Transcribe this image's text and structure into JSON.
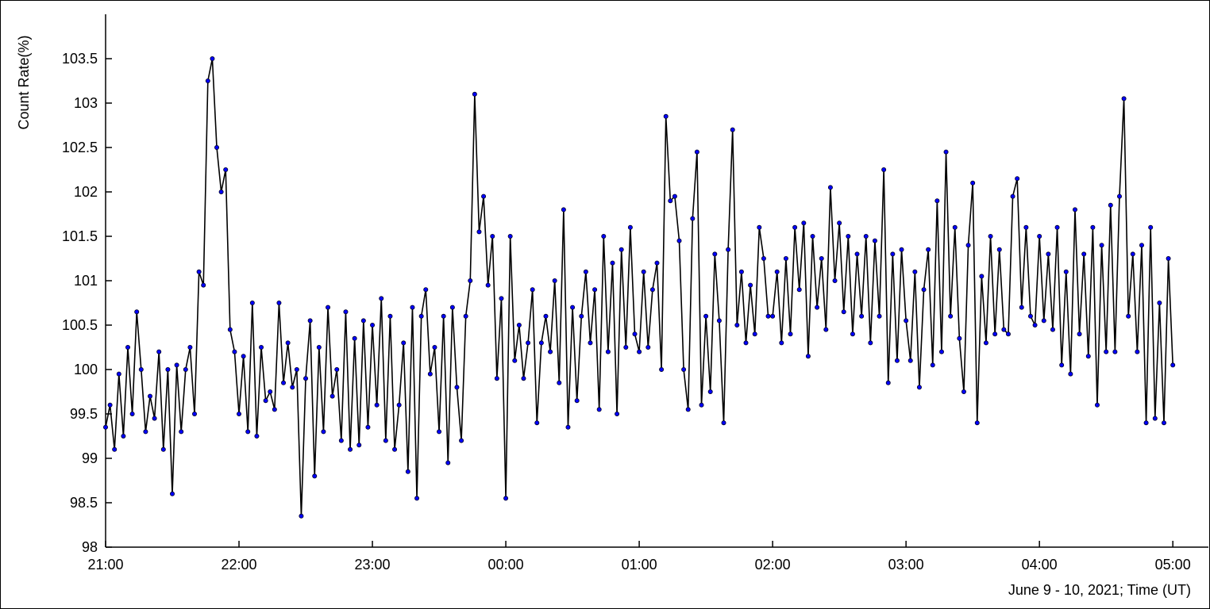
{
  "chart_data": {
    "type": "line",
    "y_label": "Count Rate(%)",
    "x_label": "June 9 - 10, 2021; Time (UT)",
    "xlim": [
      "21:00",
      "05:16"
    ],
    "xticks": [
      "21:00",
      "22:00",
      "23:00",
      "00:00",
      "01:00",
      "02:00",
      "03:00",
      "04:00",
      "05:00"
    ],
    "ylim": [
      98,
      104
    ],
    "yticks": [
      98,
      98.5,
      99,
      99.5,
      100,
      100.5,
      101,
      101.5,
      102,
      102.5,
      103,
      103.5
    ],
    "x": [
      "21:00",
      "21:02",
      "21:04",
      "21:06",
      "21:08",
      "21:10",
      "21:12",
      "21:14",
      "21:16",
      "21:18",
      "21:20",
      "21:22",
      "21:24",
      "21:26",
      "21:28",
      "21:30",
      "21:32",
      "21:34",
      "21:36",
      "21:38",
      "21:40",
      "21:42",
      "21:44",
      "21:46",
      "21:48",
      "21:50",
      "21:52",
      "21:54",
      "21:56",
      "21:58",
      "22:00",
      "22:02",
      "22:04",
      "22:06",
      "22:08",
      "22:10",
      "22:12",
      "22:14",
      "22:16",
      "22:18",
      "22:20",
      "22:22",
      "22:24",
      "22:26",
      "22:28",
      "22:30",
      "22:32",
      "22:34",
      "22:36",
      "22:38",
      "22:40",
      "22:42",
      "22:44",
      "22:46",
      "22:48",
      "22:50",
      "22:52",
      "22:54",
      "22:56",
      "22:58",
      "23:00",
      "23:02",
      "23:04",
      "23:06",
      "23:08",
      "23:10",
      "23:12",
      "23:14",
      "23:16",
      "23:18",
      "23:20",
      "23:22",
      "23:24",
      "23:26",
      "23:28",
      "23:30",
      "23:32",
      "23:34",
      "23:36",
      "23:38",
      "23:40",
      "23:42",
      "23:44",
      "23:46",
      "23:48",
      "23:50",
      "23:52",
      "23:54",
      "23:56",
      "23:58",
      "00:00",
      "00:02",
      "00:04",
      "00:06",
      "00:08",
      "00:10",
      "00:12",
      "00:14",
      "00:16",
      "00:18",
      "00:20",
      "00:22",
      "00:24",
      "00:26",
      "00:28",
      "00:30",
      "00:32",
      "00:34",
      "00:36",
      "00:38",
      "00:40",
      "00:42",
      "00:44",
      "00:46",
      "00:48",
      "00:50",
      "00:52",
      "00:54",
      "00:56",
      "00:58",
      "01:00",
      "01:02",
      "01:04",
      "01:06",
      "01:08",
      "01:10",
      "01:12",
      "01:14",
      "01:16",
      "01:18",
      "01:20",
      "01:22",
      "01:24",
      "01:26",
      "01:28",
      "01:30",
      "01:32",
      "01:34",
      "01:36",
      "01:38",
      "01:40",
      "01:42",
      "01:44",
      "01:46",
      "01:48",
      "01:50",
      "01:52",
      "01:54",
      "01:56",
      "01:58",
      "02:00",
      "02:02",
      "02:04",
      "02:06",
      "02:08",
      "02:10",
      "02:12",
      "02:14",
      "02:16",
      "02:18",
      "02:20",
      "02:22",
      "02:24",
      "02:26",
      "02:28",
      "02:30",
      "02:32",
      "02:34",
      "02:36",
      "02:38",
      "02:40",
      "02:42",
      "02:44",
      "02:46",
      "02:48",
      "02:50",
      "02:52",
      "02:54",
      "02:56",
      "02:58",
      "03:00",
      "03:02",
      "03:04",
      "03:06",
      "03:08",
      "03:10",
      "03:12",
      "03:14",
      "03:16",
      "03:18",
      "03:20",
      "03:22",
      "03:24",
      "03:26",
      "03:28",
      "03:30",
      "03:32",
      "03:34",
      "03:36",
      "03:38",
      "03:40",
      "03:42",
      "03:44",
      "03:46",
      "03:48",
      "03:50",
      "03:52",
      "03:54",
      "03:56",
      "03:58",
      "04:00",
      "04:02",
      "04:04",
      "04:06",
      "04:08",
      "04:10",
      "04:12",
      "04:14",
      "04:16",
      "04:18",
      "04:20",
      "04:22",
      "04:24",
      "04:26",
      "04:28",
      "04:30",
      "04:32",
      "04:34",
      "04:36",
      "04:38",
      "04:40",
      "04:42",
      "04:44",
      "04:46",
      "04:48",
      "04:50",
      "04:52",
      "04:54",
      "04:56",
      "04:58",
      "05:00"
    ],
    "series": [
      {
        "color": "#000000",
        "marker_color": "#0000ff",
        "values": [
          99.35,
          99.6,
          99.1,
          99.95,
          99.25,
          100.25,
          99.5,
          100.65,
          100.0,
          99.3,
          99.7,
          99.45,
          100.2,
          99.1,
          100.0,
          98.6,
          100.05,
          99.3,
          100.0,
          100.25,
          99.5,
          101.1,
          100.95,
          103.25,
          103.5,
          102.5,
          102.0,
          102.25,
          100.45,
          100.2,
          99.5,
          100.15,
          99.3,
          100.75,
          99.25,
          100.25,
          99.65,
          99.75,
          99.55,
          100.75,
          99.85,
          100.3,
          99.8,
          100.0,
          98.35,
          99.9,
          100.55,
          98.8,
          100.25,
          99.3,
          100.7,
          99.7,
          100.0,
          99.2,
          100.65,
          99.1,
          100.35,
          99.15,
          100.55,
          99.35,
          100.5,
          99.6,
          100.8,
          99.2,
          100.6,
          99.1,
          99.6,
          100.3,
          98.85,
          100.7,
          98.55,
          100.6,
          100.9,
          99.95,
          100.25,
          99.3,
          100.6,
          98.95,
          100.7,
          99.8,
          99.2,
          100.6,
          101.0,
          103.1,
          101.55,
          101.95,
          100.95,
          101.5,
          99.9,
          100.8,
          98.55,
          101.5,
          100.1,
          100.5,
          99.9,
          100.3,
          100.9,
          99.4,
          100.3,
          100.6,
          100.2,
          101.0,
          99.85,
          101.8,
          99.35,
          100.7,
          99.65,
          100.6,
          101.1,
          100.3,
          100.9,
          99.55,
          101.5,
          100.2,
          101.2,
          99.5,
          101.35,
          100.25,
          101.6,
          100.4,
          100.2,
          101.1,
          100.25,
          100.9,
          101.2,
          100.0,
          102.85,
          101.9,
          101.95,
          101.45,
          100.0,
          99.55,
          101.7,
          102.45,
          99.6,
          100.6,
          99.75,
          101.3,
          100.55,
          99.4,
          101.35,
          102.7,
          100.5,
          101.1,
          100.3,
          100.95,
          100.4,
          101.6,
          101.25,
          100.6,
          100.6,
          101.1,
          100.3,
          101.25,
          100.4,
          101.6,
          100.9,
          101.65,
          100.15,
          101.5,
          100.7,
          101.25,
          100.45,
          102.05,
          101.0,
          101.65,
          100.65,
          101.5,
          100.4,
          101.3,
          100.6,
          101.5,
          100.3,
          101.45,
          100.6,
          102.25,
          99.85,
          101.3,
          100.1,
          101.35,
          100.55,
          100.1,
          101.1,
          99.8,
          100.9,
          101.35,
          100.05,
          101.9,
          100.2,
          102.45,
          100.6,
          101.6,
          100.35,
          99.75,
          101.4,
          102.1,
          99.4,
          101.05,
          100.3,
          101.5,
          100.4,
          101.35,
          100.45,
          100.4,
          101.95,
          102.15,
          100.7,
          101.6,
          100.6,
          100.5,
          101.5,
          100.55,
          101.3,
          100.45,
          101.6,
          100.05,
          101.1,
          99.95,
          101.8,
          100.4,
          101.3,
          100.15,
          101.6,
          99.6,
          101.4,
          100.2,
          101.85,
          100.2,
          101.95,
          103.05,
          100.6,
          101.3,
          100.2,
          101.4,
          99.4,
          101.6,
          99.45,
          100.75,
          99.4,
          101.25,
          100.05
        ]
      }
    ]
  }
}
